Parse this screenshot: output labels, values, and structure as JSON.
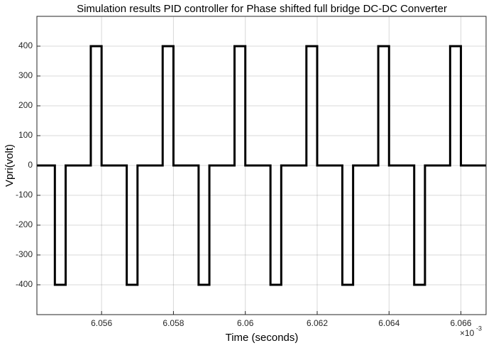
{
  "chart_data": {
    "type": "line",
    "title": "Simulation results PID controller for Phase shifted full bridge DC-DC Converter",
    "x_label": "Time (seconds)",
    "y_label": "Vpri(volt)",
    "x_scale_base": "×10",
    "x_scale_exponent": "-3",
    "x": [
      6.0542,
      6.0547,
      6.0547,
      6.055,
      6.055,
      6.0557,
      6.0557,
      6.056,
      6.056,
      6.0567,
      6.0567,
      6.057,
      6.057,
      6.0577,
      6.0577,
      6.058,
      6.058,
      6.0587,
      6.0587,
      6.059,
      6.059,
      6.0597,
      6.0597,
      6.06,
      6.06,
      6.0607,
      6.0607,
      6.061,
      6.061,
      6.0617,
      6.0617,
      6.062,
      6.062,
      6.0627,
      6.0627,
      6.063,
      6.063,
      6.0637,
      6.0637,
      6.064,
      6.064,
      6.0647,
      6.0647,
      6.065,
      6.065,
      6.0657,
      6.0657,
      6.066,
      6.066,
      6.0667
    ],
    "values": [
      0,
      0,
      -400,
      -400,
      0,
      0,
      400,
      400,
      0,
      0,
      -400,
      -400,
      0,
      0,
      400,
      400,
      0,
      0,
      -400,
      -400,
      0,
      0,
      400,
      400,
      0,
      0,
      -400,
      -400,
      0,
      0,
      400,
      400,
      0,
      0,
      -400,
      -400,
      0,
      0,
      400,
      400,
      0,
      0,
      -400,
      -400,
      0,
      0,
      400,
      400,
      0,
      0
    ],
    "color": "#000000",
    "xlim": [
      6.0542,
      6.0667
    ],
    "xticks": [
      6.056,
      6.058,
      6.06,
      6.062,
      6.064,
      6.066
    ],
    "ylim": [
      -500,
      500
    ],
    "yticks": [
      -400,
      -300,
      -200,
      -100,
      0,
      100,
      200,
      300,
      400
    ],
    "grid": true
  }
}
